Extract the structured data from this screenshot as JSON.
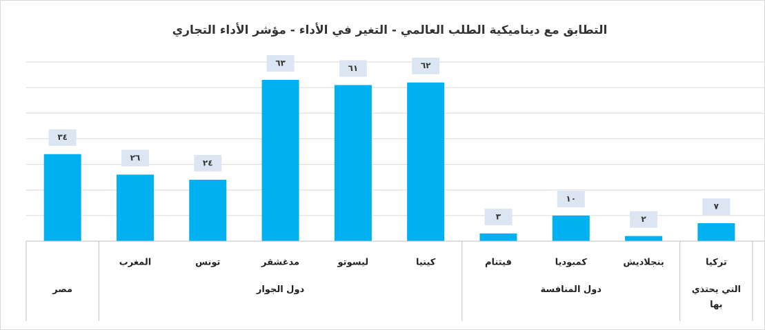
{
  "chart_data": {
    "type": "bar",
    "title": "التطابق مع ديناميكية الطلب العالمي - التغير في الأداء - مؤشر الأداء التجاري",
    "categories": [
      null,
      "المغرب",
      "تونس",
      "مدغشقر",
      "ليسوتو",
      "كينيا",
      "فيتنام",
      "كمبوديا",
      "بنجلاديش",
      "تركيا"
    ],
    "values": [
      34,
      26,
      24,
      63,
      61,
      62,
      3,
      10,
      2,
      7
    ],
    "value_labels": [
      "٣٤",
      "٢٦",
      "٢٤",
      "٦٣",
      "٦١",
      "٦٢",
      "٣",
      "١٠",
      "٢",
      "٧"
    ],
    "groups": [
      {
        "name": "مصر",
        "size": 1
      },
      {
        "name": "دول الجوار",
        "size": 5
      },
      {
        "name": "دول المنافسة",
        "size": 3
      },
      {
        "name": "التي يحتذي بها",
        "size": 1
      }
    ],
    "color": "#00b0f0",
    "ylim": [
      0,
      70
    ],
    "yticks": [
      0,
      10,
      20,
      30,
      40,
      50,
      60,
      70
    ],
    "grid": true
  }
}
